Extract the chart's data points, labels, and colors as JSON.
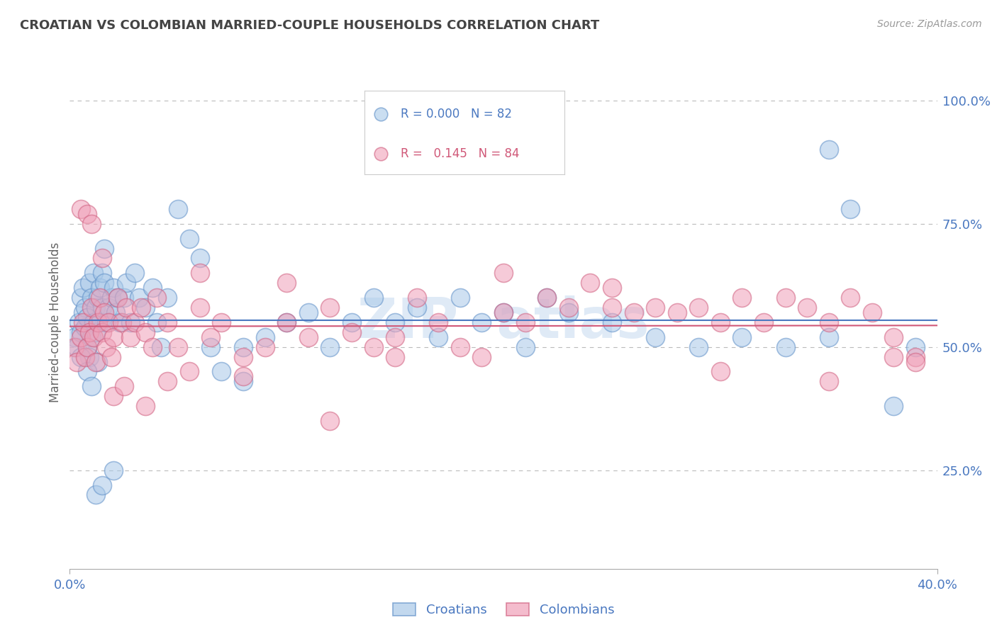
{
  "title": "CROATIAN VS COLOMBIAN MARRIED-COUPLE HOUSEHOLDS CORRELATION CHART",
  "source": "Source: ZipAtlas.com",
  "ylabel": "Married-couple Households",
  "ytick_labels": [
    "100.0%",
    "75.0%",
    "50.0%",
    "25.0%"
  ],
  "ytick_values": [
    1.0,
    0.75,
    0.5,
    0.25
  ],
  "xtick_labels": [
    "0.0%",
    "40.0%"
  ],
  "xtick_values": [
    0.0,
    0.4
  ],
  "xlim": [
    0.0,
    0.4
  ],
  "ylim": [
    0.05,
    1.05
  ],
  "legend_blue_r": "0.000",
  "legend_blue_n": "82",
  "legend_pink_r": "0.145",
  "legend_pink_n": "84",
  "blue_color": "#a8c8e8",
  "pink_color": "#f0a0b8",
  "blue_edge_color": "#6090c8",
  "pink_edge_color": "#d06080",
  "blue_line_color": "#4a78c0",
  "pink_line_color": "#d05878",
  "grid_color": "#bbbbbb",
  "title_color": "#444444",
  "right_tick_color": "#4a78c0",
  "bottom_tick_color": "#4a78c0",
  "watermark_color": "#dce8f5",
  "blue_scatter_x": [
    0.002,
    0.003,
    0.004,
    0.005,
    0.005,
    0.006,
    0.006,
    0.007,
    0.007,
    0.008,
    0.008,
    0.009,
    0.009,
    0.01,
    0.01,
    0.011,
    0.011,
    0.012,
    0.012,
    0.013,
    0.013,
    0.014,
    0.014,
    0.015,
    0.015,
    0.016,
    0.016,
    0.017,
    0.018,
    0.019,
    0.02,
    0.021,
    0.022,
    0.023,
    0.025,
    0.026,
    0.028,
    0.03,
    0.032,
    0.035,
    0.038,
    0.04,
    0.042,
    0.045,
    0.05,
    0.055,
    0.06,
    0.065,
    0.07,
    0.08,
    0.09,
    0.1,
    0.11,
    0.12,
    0.13,
    0.14,
    0.15,
    0.16,
    0.17,
    0.18,
    0.19,
    0.2,
    0.21,
    0.22,
    0.23,
    0.25,
    0.27,
    0.29,
    0.31,
    0.33,
    0.35,
    0.36,
    0.38,
    0.39,
    0.005,
    0.008,
    0.01,
    0.012,
    0.015,
    0.02,
    0.08,
    0.35
  ],
  "blue_scatter_y": [
    0.52,
    0.5,
    0.55,
    0.53,
    0.6,
    0.57,
    0.62,
    0.54,
    0.58,
    0.5,
    0.56,
    0.63,
    0.48,
    0.52,
    0.6,
    0.55,
    0.65,
    0.58,
    0.53,
    0.6,
    0.47,
    0.62,
    0.55,
    0.65,
    0.58,
    0.63,
    0.7,
    0.55,
    0.58,
    0.6,
    0.62,
    0.57,
    0.6,
    0.55,
    0.6,
    0.63,
    0.55,
    0.65,
    0.6,
    0.58,
    0.62,
    0.55,
    0.5,
    0.6,
    0.78,
    0.72,
    0.68,
    0.5,
    0.45,
    0.5,
    0.52,
    0.55,
    0.57,
    0.5,
    0.55,
    0.6,
    0.55,
    0.58,
    0.52,
    0.6,
    0.55,
    0.57,
    0.5,
    0.6,
    0.57,
    0.55,
    0.52,
    0.5,
    0.52,
    0.5,
    0.52,
    0.78,
    0.38,
    0.5,
    0.48,
    0.45,
    0.42,
    0.2,
    0.22,
    0.25,
    0.43,
    0.9
  ],
  "pink_scatter_x": [
    0.002,
    0.003,
    0.005,
    0.006,
    0.007,
    0.008,
    0.009,
    0.01,
    0.011,
    0.012,
    0.013,
    0.014,
    0.015,
    0.016,
    0.017,
    0.018,
    0.019,
    0.02,
    0.022,
    0.024,
    0.026,
    0.028,
    0.03,
    0.033,
    0.035,
    0.038,
    0.04,
    0.045,
    0.05,
    0.055,
    0.06,
    0.065,
    0.07,
    0.08,
    0.09,
    0.1,
    0.11,
    0.12,
    0.13,
    0.14,
    0.15,
    0.16,
    0.17,
    0.18,
    0.19,
    0.2,
    0.21,
    0.22,
    0.23,
    0.24,
    0.25,
    0.26,
    0.27,
    0.28,
    0.29,
    0.3,
    0.31,
    0.32,
    0.33,
    0.34,
    0.35,
    0.36,
    0.37,
    0.38,
    0.39,
    0.005,
    0.008,
    0.01,
    0.015,
    0.02,
    0.025,
    0.035,
    0.045,
    0.06,
    0.08,
    0.1,
    0.15,
    0.2,
    0.25,
    0.3,
    0.35,
    0.38,
    0.39,
    0.12
  ],
  "pink_scatter_y": [
    0.5,
    0.47,
    0.52,
    0.55,
    0.48,
    0.5,
    0.53,
    0.58,
    0.52,
    0.47,
    0.55,
    0.6,
    0.53,
    0.57,
    0.5,
    0.55,
    0.48,
    0.52,
    0.6,
    0.55,
    0.58,
    0.52,
    0.55,
    0.58,
    0.53,
    0.5,
    0.6,
    0.55,
    0.5,
    0.45,
    0.58,
    0.52,
    0.55,
    0.48,
    0.5,
    0.55,
    0.52,
    0.58,
    0.53,
    0.5,
    0.52,
    0.6,
    0.55,
    0.5,
    0.48,
    0.57,
    0.55,
    0.6,
    0.58,
    0.63,
    0.62,
    0.57,
    0.58,
    0.57,
    0.58,
    0.55,
    0.6,
    0.55,
    0.6,
    0.58,
    0.55,
    0.6,
    0.57,
    0.52,
    0.48,
    0.78,
    0.77,
    0.75,
    0.68,
    0.4,
    0.42,
    0.38,
    0.43,
    0.65,
    0.44,
    0.63,
    0.48,
    0.65,
    0.58,
    0.45,
    0.43,
    0.48,
    0.47,
    0.35
  ]
}
